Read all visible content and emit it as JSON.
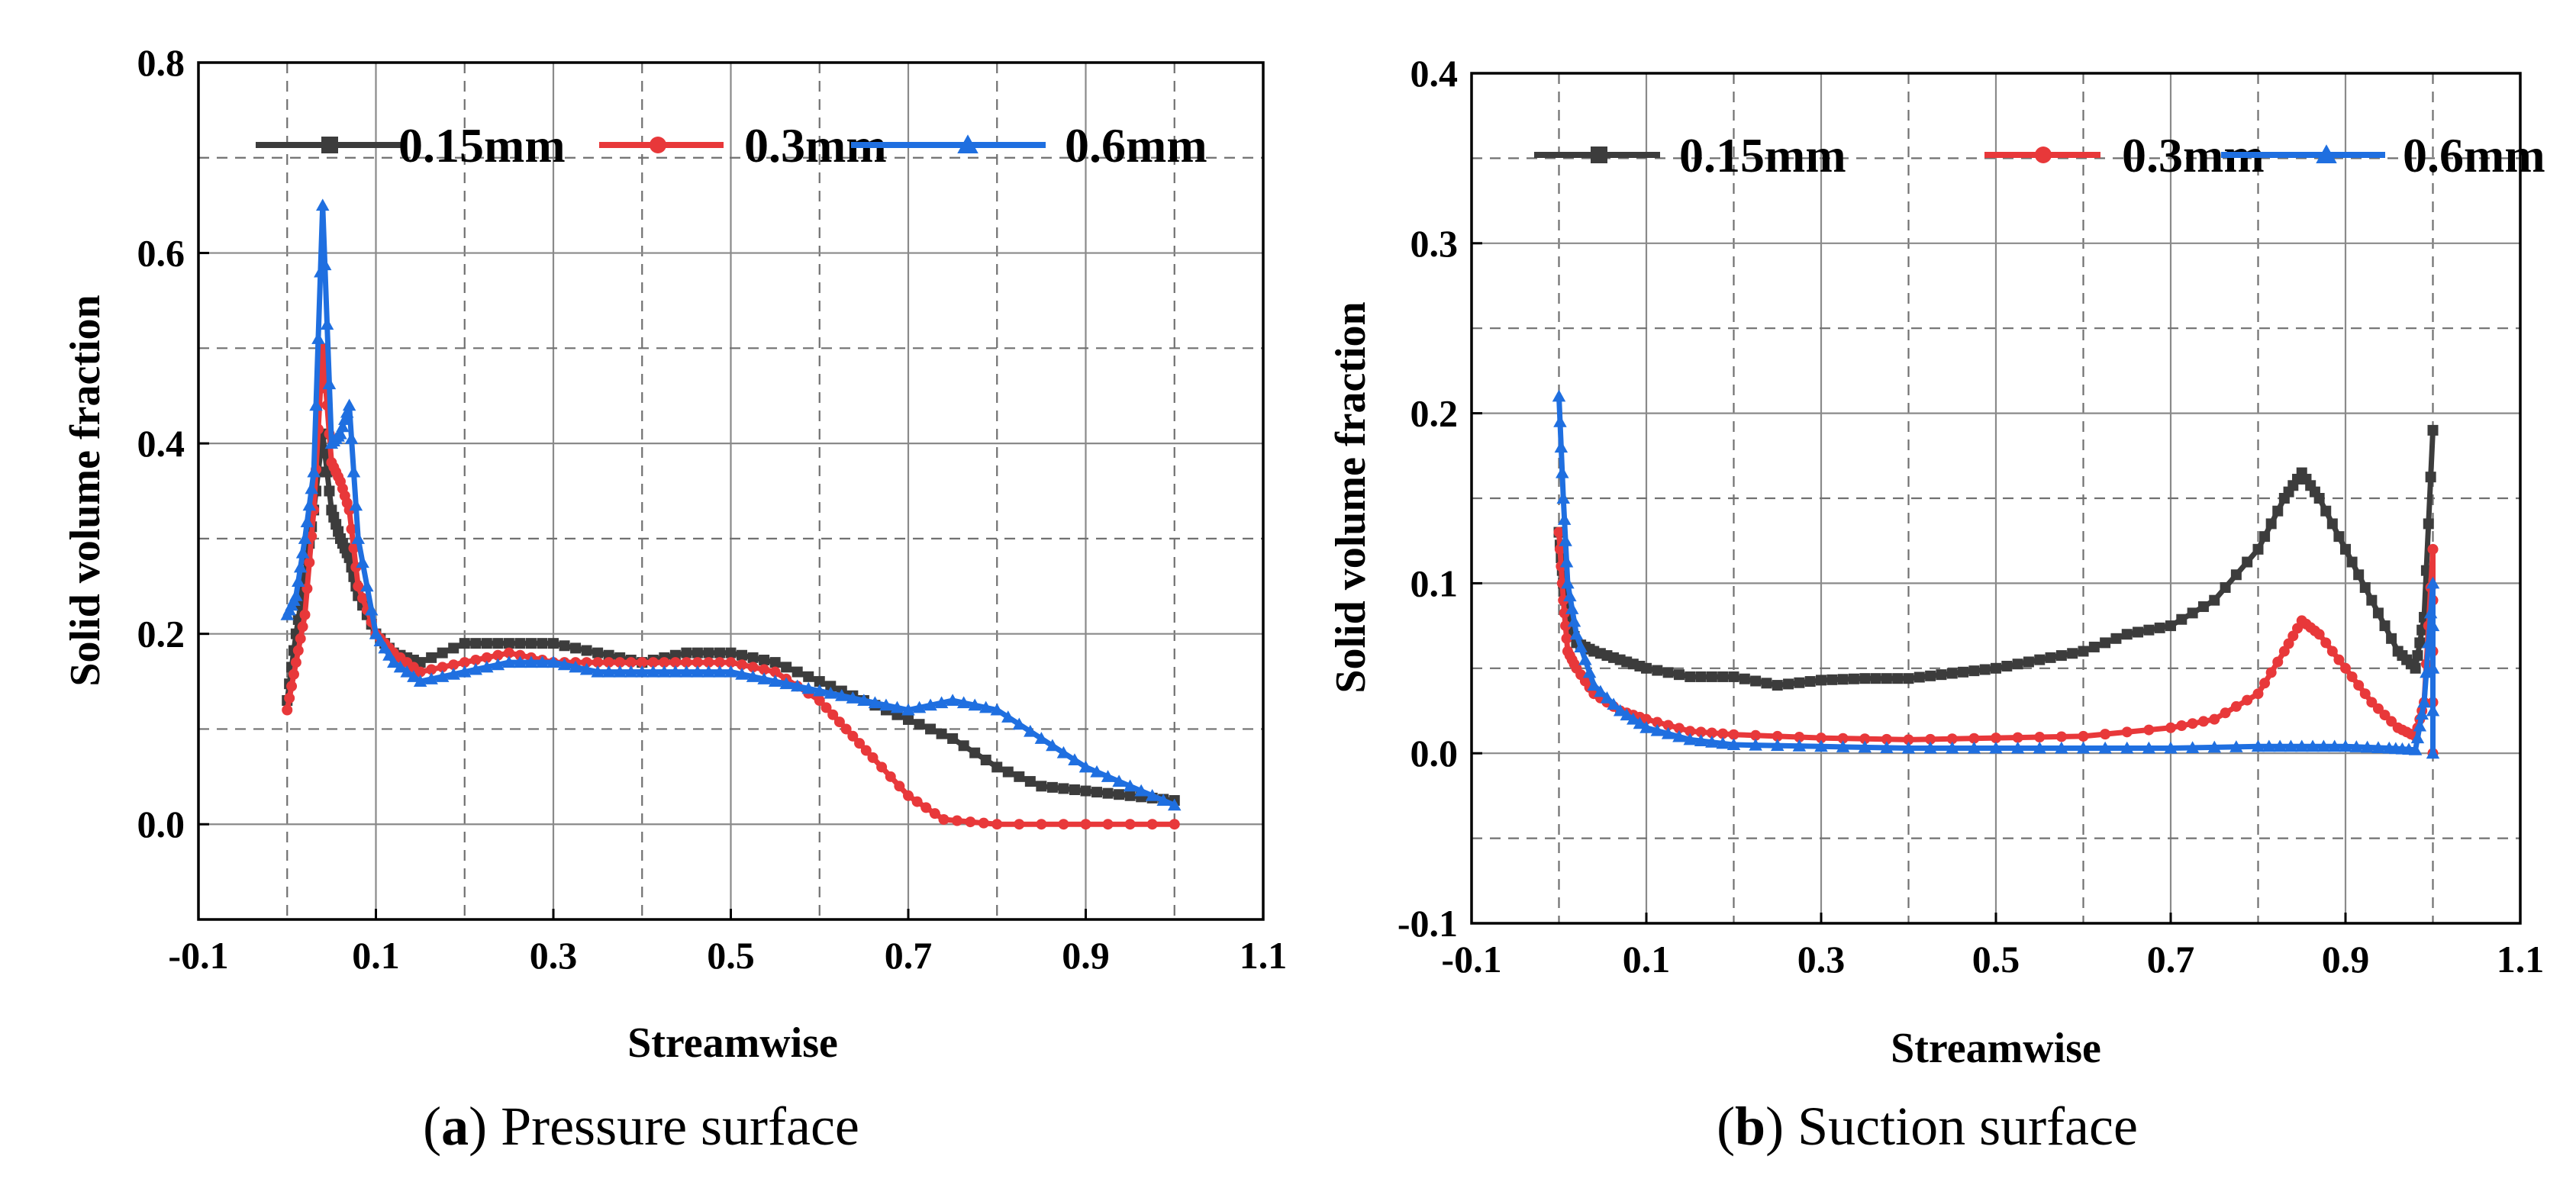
{
  "chart_data": [
    {
      "type": "line",
      "panel_letter": "a",
      "caption": "Pressure surface",
      "xlabel": "Streamwise",
      "ylabel": "Solid volume fraction",
      "xlim": [
        -0.1,
        1.1
      ],
      "ylim": [
        -0.1,
        0.8
      ],
      "xticks": [
        -0.1,
        0.1,
        0.3,
        0.5,
        0.7,
        0.9,
        1.1
      ],
      "xtick_labels": [
        "-0.1",
        "0.1",
        "0.3",
        "0.5",
        "0.7",
        "0.9",
        "1.1"
      ],
      "yticks": [
        0.0,
        0.2,
        0.4,
        0.6,
        0.8
      ],
      "ytick_labels": [
        "0.0",
        "0.2",
        "0.4",
        "0.6",
        "0.8"
      ],
      "grid": true,
      "legend_position": "top",
      "series": [
        {
          "name": "0.15mm",
          "color": "#3c3c3c",
          "marker": "square",
          "points": [
            [
              0.0,
              0.13
            ],
            [
              0.01,
              0.2
            ],
            [
              0.02,
              0.26
            ],
            [
              0.03,
              0.33
            ],
            [
              0.04,
              0.41
            ],
            [
              0.05,
              0.33
            ],
            [
              0.06,
              0.3
            ],
            [
              0.07,
              0.28
            ],
            [
              0.08,
              0.24
            ],
            [
              0.1,
              0.2
            ],
            [
              0.12,
              0.18
            ],
            [
              0.15,
              0.17
            ],
            [
              0.2,
              0.19
            ],
            [
              0.25,
              0.19
            ],
            [
              0.3,
              0.19
            ],
            [
              0.35,
              0.18
            ],
            [
              0.4,
              0.17
            ],
            [
              0.45,
              0.18
            ],
            [
              0.5,
              0.18
            ],
            [
              0.55,
              0.17
            ],
            [
              0.6,
              0.15
            ],
            [
              0.65,
              0.13
            ],
            [
              0.7,
              0.11
            ],
            [
              0.75,
              0.09
            ],
            [
              0.8,
              0.06
            ],
            [
              0.85,
              0.04
            ],
            [
              0.9,
              0.035
            ],
            [
              0.95,
              0.03
            ],
            [
              1.0,
              0.025
            ]
          ]
        },
        {
          "name": "0.3mm",
          "color": "#e8383a",
          "marker": "circle",
          "points": [
            [
              0.0,
              0.12
            ],
            [
              0.01,
              0.17
            ],
            [
              0.02,
              0.22
            ],
            [
              0.03,
              0.33
            ],
            [
              0.04,
              0.5
            ],
            [
              0.05,
              0.38
            ],
            [
              0.06,
              0.36
            ],
            [
              0.07,
              0.33
            ],
            [
              0.08,
              0.25
            ],
            [
              0.1,
              0.2
            ],
            [
              0.12,
              0.18
            ],
            [
              0.15,
              0.16
            ],
            [
              0.2,
              0.17
            ],
            [
              0.25,
              0.18
            ],
            [
              0.3,
              0.17
            ],
            [
              0.35,
              0.17
            ],
            [
              0.4,
              0.17
            ],
            [
              0.45,
              0.17
            ],
            [
              0.5,
              0.17
            ],
            [
              0.55,
              0.16
            ],
            [
              0.6,
              0.13
            ],
            [
              0.63,
              0.1
            ],
            [
              0.66,
              0.07
            ],
            [
              0.7,
              0.03
            ],
            [
              0.74,
              0.005
            ],
            [
              0.8,
              0.0
            ],
            [
              0.9,
              0.0
            ],
            [
              1.0,
              0.0
            ]
          ]
        },
        {
          "name": "0.6mm",
          "color": "#1f6fe0",
          "marker": "triangle",
          "points": [
            [
              0.0,
              0.22
            ],
            [
              0.01,
              0.24
            ],
            [
              0.02,
              0.3
            ],
            [
              0.03,
              0.37
            ],
            [
              0.04,
              0.65
            ],
            [
              0.05,
              0.4
            ],
            [
              0.06,
              0.41
            ],
            [
              0.07,
              0.44
            ],
            [
              0.08,
              0.3
            ],
            [
              0.1,
              0.2
            ],
            [
              0.12,
              0.17
            ],
            [
              0.15,
              0.15
            ],
            [
              0.2,
              0.16
            ],
            [
              0.25,
              0.17
            ],
            [
              0.3,
              0.17
            ],
            [
              0.35,
              0.16
            ],
            [
              0.4,
              0.16
            ],
            [
              0.45,
              0.16
            ],
            [
              0.5,
              0.16
            ],
            [
              0.55,
              0.15
            ],
            [
              0.6,
              0.14
            ],
            [
              0.65,
              0.13
            ],
            [
              0.7,
              0.12
            ],
            [
              0.75,
              0.13
            ],
            [
              0.8,
              0.12
            ],
            [
              0.85,
              0.09
            ],
            [
              0.9,
              0.06
            ],
            [
              0.95,
              0.04
            ],
            [
              1.0,
              0.02
            ]
          ]
        }
      ]
    },
    {
      "type": "line",
      "panel_letter": "b",
      "caption": "Suction surface",
      "xlabel": "Streamwise",
      "ylabel": "Solid volume fraction",
      "xlim": [
        -0.1,
        1.1
      ],
      "ylim": [
        -0.1,
        0.4
      ],
      "xticks": [
        -0.1,
        0.1,
        0.3,
        0.5,
        0.7,
        0.9,
        1.1
      ],
      "xtick_labels": [
        "-0.1",
        "0.1",
        "0.3",
        "0.5",
        "0.7",
        "0.9",
        "1.1"
      ],
      "yticks": [
        -0.1,
        0.0,
        0.1,
        0.2,
        0.3,
        0.4
      ],
      "ytick_labels": [
        "-0.1",
        "0.0",
        "0.1",
        "0.2",
        "0.3",
        "0.4"
      ],
      "grid": true,
      "legend_position": "top",
      "series": [
        {
          "name": "0.15mm",
          "color": "#3c3c3c",
          "marker": "square",
          "points": [
            [
              0.0,
              0.13
            ],
            [
              0.005,
              0.1
            ],
            [
              0.01,
              0.08
            ],
            [
              0.02,
              0.065
            ],
            [
              0.04,
              0.06
            ],
            [
              0.07,
              0.055
            ],
            [
              0.1,
              0.05
            ],
            [
              0.15,
              0.045
            ],
            [
              0.2,
              0.045
            ],
            [
              0.25,
              0.04
            ],
            [
              0.3,
              0.043
            ],
            [
              0.35,
              0.044
            ],
            [
              0.4,
              0.044
            ],
            [
              0.45,
              0.047
            ],
            [
              0.5,
              0.05
            ],
            [
              0.55,
              0.055
            ],
            [
              0.6,
              0.06
            ],
            [
              0.65,
              0.07
            ],
            [
              0.7,
              0.075
            ],
            [
              0.75,
              0.09
            ],
            [
              0.8,
              0.12
            ],
            [
              0.83,
              0.15
            ],
            [
              0.85,
              0.165
            ],
            [
              0.87,
              0.15
            ],
            [
              0.9,
              0.12
            ],
            [
              0.93,
              0.09
            ],
            [
              0.96,
              0.06
            ],
            [
              0.98,
              0.05
            ],
            [
              0.99,
              0.08
            ],
            [
              1.0,
              0.19
            ]
          ]
        },
        {
          "name": "0.3mm",
          "color": "#e8383a",
          "marker": "circle",
          "points": [
            [
              0.0,
              0.13
            ],
            [
              0.005,
              0.09
            ],
            [
              0.01,
              0.06
            ],
            [
              0.02,
              0.05
            ],
            [
              0.04,
              0.035
            ],
            [
              0.07,
              0.025
            ],
            [
              0.1,
              0.02
            ],
            [
              0.15,
              0.013
            ],
            [
              0.2,
              0.011
            ],
            [
              0.3,
              0.009
            ],
            [
              0.4,
              0.008
            ],
            [
              0.5,
              0.009
            ],
            [
              0.6,
              0.01
            ],
            [
              0.7,
              0.015
            ],
            [
              0.75,
              0.02
            ],
            [
              0.8,
              0.035
            ],
            [
              0.83,
              0.06
            ],
            [
              0.85,
              0.078
            ],
            [
              0.87,
              0.07
            ],
            [
              0.9,
              0.05
            ],
            [
              0.93,
              0.03
            ],
            [
              0.96,
              0.015
            ],
            [
              0.98,
              0.01
            ],
            [
              0.99,
              0.03
            ],
            [
              1.0,
              0.12
            ],
            [
              1.0,
              0.0
            ]
          ]
        },
        {
          "name": "0.6mm",
          "color": "#1f6fe0",
          "marker": "triangle",
          "points": [
            [
              0.0,
              0.21
            ],
            [
              0.005,
              0.15
            ],
            [
              0.01,
              0.1
            ],
            [
              0.02,
              0.07
            ],
            [
              0.04,
              0.04
            ],
            [
              0.07,
              0.025
            ],
            [
              0.1,
              0.015
            ],
            [
              0.15,
              0.008
            ],
            [
              0.2,
              0.005
            ],
            [
              0.3,
              0.004
            ],
            [
              0.4,
              0.003
            ],
            [
              0.5,
              0.003
            ],
            [
              0.6,
              0.003
            ],
            [
              0.7,
              0.003
            ],
            [
              0.8,
              0.004
            ],
            [
              0.85,
              0.004
            ],
            [
              0.9,
              0.004
            ],
            [
              0.95,
              0.003
            ],
            [
              0.98,
              0.002
            ],
            [
              0.99,
              0.03
            ],
            [
              1.0,
              0.1
            ],
            [
              1.0,
              0.0
            ]
          ]
        }
      ]
    }
  ]
}
